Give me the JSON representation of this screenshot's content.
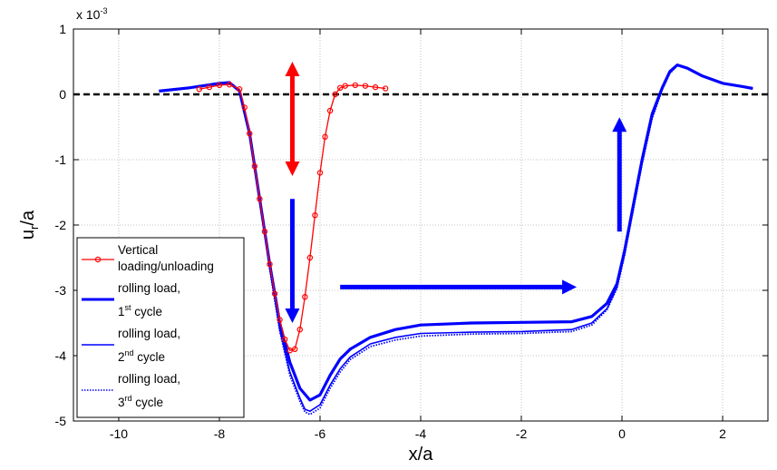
{
  "chart_data": {
    "type": "line",
    "xlabel": "x/a",
    "ylabel_main": "u",
    "ylabel_sub": "r",
    "ylabel_suffix": "/a",
    "y_exponent_prefix": "x 10",
    "y_exponent": "-3",
    "xlim": [
      -10.9,
      2.9
    ],
    "ylim": [
      -5,
      1
    ],
    "x_ticks": [
      -10,
      -8,
      -6,
      -4,
      -2,
      0,
      2
    ],
    "x_tick_labels": [
      "-10",
      "-8",
      "-6",
      "-4",
      "-2",
      "0",
      "2"
    ],
    "y_ticks": [
      1,
      0,
      -1,
      -2,
      -3,
      -4,
      -5
    ],
    "y_tick_labels": [
      "1",
      "0",
      "-1",
      "-2",
      "-3",
      "-4",
      "-5"
    ],
    "grid": true,
    "reference_line": {
      "y": 0,
      "style": "dashed",
      "color": "#000000"
    },
    "legend_position": "lower-left",
    "legend": [
      {
        "line1": "Vertical",
        "line2": "loading/unloading",
        "sup": "",
        "line2_suffix": ""
      },
      {
        "line1": "rolling load,",
        "line2": "1",
        "sup": "st",
        "line2_suffix": " cycle"
      },
      {
        "line1": "rolling load,",
        "line2": "2",
        "sup": "nd",
        "line2_suffix": " cycle"
      },
      {
        "line1": "rolling load,",
        "line2": "3",
        "sup": "rd",
        "line2_suffix": " cycle"
      }
    ],
    "series": [
      {
        "style": "red-circles",
        "color": "#ff0000",
        "points": [
          [
            -8.4,
            0.08
          ],
          [
            -8.2,
            0.11
          ],
          [
            -8.0,
            0.14
          ],
          [
            -7.8,
            0.15
          ],
          [
            -7.6,
            0.08
          ],
          [
            -7.5,
            -0.2
          ],
          [
            -7.4,
            -0.6
          ],
          [
            -7.3,
            -1.1
          ],
          [
            -7.2,
            -1.6
          ],
          [
            -7.1,
            -2.1
          ],
          [
            -7.0,
            -2.6
          ],
          [
            -6.9,
            -3.05
          ],
          [
            -6.8,
            -3.45
          ],
          [
            -6.7,
            -3.75
          ],
          [
            -6.6,
            -3.92
          ],
          [
            -6.5,
            -3.9
          ],
          [
            -6.4,
            -3.6
          ],
          [
            -6.3,
            -3.1
          ],
          [
            -6.2,
            -2.5
          ],
          [
            -6.1,
            -1.85
          ],
          [
            -6.0,
            -1.2
          ],
          [
            -5.9,
            -0.65
          ],
          [
            -5.8,
            -0.25
          ],
          [
            -5.7,
            0.0
          ],
          [
            -5.6,
            0.1
          ],
          [
            -5.5,
            0.13
          ],
          [
            -5.3,
            0.14
          ],
          [
            -5.1,
            0.13
          ],
          [
            -4.9,
            0.11
          ],
          [
            -4.7,
            0.09
          ]
        ]
      },
      {
        "style": "thick-solid",
        "color": "#0000ff",
        "points": [
          [
            -9.2,
            0.05
          ],
          [
            -8.6,
            0.1
          ],
          [
            -8.0,
            0.17
          ],
          [
            -7.8,
            0.18
          ],
          [
            -7.6,
            0.05
          ],
          [
            -7.4,
            -0.6
          ],
          [
            -7.2,
            -1.6
          ],
          [
            -7.0,
            -2.6
          ],
          [
            -6.8,
            -3.5
          ],
          [
            -6.6,
            -4.1
          ],
          [
            -6.4,
            -4.5
          ],
          [
            -6.2,
            -4.68
          ],
          [
            -6.0,
            -4.6
          ],
          [
            -5.8,
            -4.3
          ],
          [
            -5.6,
            -4.05
          ],
          [
            -5.4,
            -3.9
          ],
          [
            -5.0,
            -3.72
          ],
          [
            -4.5,
            -3.6
          ],
          [
            -4.0,
            -3.53
          ],
          [
            -3.0,
            -3.5
          ],
          [
            -2.0,
            -3.49
          ],
          [
            -1.0,
            -3.48
          ],
          [
            -0.6,
            -3.4
          ],
          [
            -0.3,
            -3.2
          ],
          [
            -0.1,
            -2.9
          ],
          [
            0.05,
            -2.4
          ],
          [
            0.2,
            -1.8
          ],
          [
            0.4,
            -1.0
          ],
          [
            0.6,
            -0.3
          ],
          [
            0.8,
            0.1
          ],
          [
            0.95,
            0.35
          ],
          [
            1.1,
            0.45
          ],
          [
            1.3,
            0.4
          ],
          [
            1.6,
            0.28
          ],
          [
            2.0,
            0.17
          ],
          [
            2.4,
            0.12
          ],
          [
            2.6,
            0.09
          ]
        ]
      },
      {
        "style": "thin-solid",
        "color": "#0000ff",
        "points": [
          [
            -9.2,
            0.05
          ],
          [
            -8.6,
            0.1
          ],
          [
            -8.0,
            0.17
          ],
          [
            -7.8,
            0.18
          ],
          [
            -7.6,
            0.05
          ],
          [
            -7.4,
            -0.6
          ],
          [
            -7.2,
            -1.6
          ],
          [
            -7.0,
            -2.65
          ],
          [
            -6.8,
            -3.6
          ],
          [
            -6.6,
            -4.25
          ],
          [
            -6.4,
            -4.65
          ],
          [
            -6.3,
            -4.82
          ],
          [
            -6.2,
            -4.85
          ],
          [
            -6.0,
            -4.75
          ],
          [
            -5.8,
            -4.45
          ],
          [
            -5.6,
            -4.2
          ],
          [
            -5.4,
            -4.02
          ],
          [
            -5.0,
            -3.82
          ],
          [
            -4.5,
            -3.72
          ],
          [
            -4.0,
            -3.66
          ],
          [
            -3.0,
            -3.64
          ],
          [
            -2.0,
            -3.63
          ],
          [
            -1.0,
            -3.6
          ],
          [
            -0.6,
            -3.5
          ],
          [
            -0.3,
            -3.28
          ],
          [
            -0.1,
            -2.95
          ],
          [
            0.05,
            -2.45
          ],
          [
            0.2,
            -1.85
          ],
          [
            0.4,
            -1.05
          ],
          [
            0.6,
            -0.35
          ],
          [
            0.8,
            0.08
          ],
          [
            0.95,
            0.33
          ],
          [
            1.1,
            0.44
          ],
          [
            1.3,
            0.4
          ],
          [
            1.6,
            0.28
          ],
          [
            2.0,
            0.17
          ],
          [
            2.4,
            0.12
          ],
          [
            2.6,
            0.09
          ]
        ]
      },
      {
        "style": "dotted",
        "color": "#0000ff",
        "points": [
          [
            -9.2,
            0.05
          ],
          [
            -8.6,
            0.1
          ],
          [
            -8.0,
            0.17
          ],
          [
            -7.8,
            0.18
          ],
          [
            -7.6,
            0.05
          ],
          [
            -7.4,
            -0.6
          ],
          [
            -7.2,
            -1.6
          ],
          [
            -7.0,
            -2.68
          ],
          [
            -6.8,
            -3.63
          ],
          [
            -6.6,
            -4.3
          ],
          [
            -6.4,
            -4.7
          ],
          [
            -6.3,
            -4.86
          ],
          [
            -6.2,
            -4.9
          ],
          [
            -6.0,
            -4.8
          ],
          [
            -5.8,
            -4.5
          ],
          [
            -5.6,
            -4.25
          ],
          [
            -5.4,
            -4.06
          ],
          [
            -5.0,
            -3.86
          ],
          [
            -4.5,
            -3.76
          ],
          [
            -4.0,
            -3.7
          ],
          [
            -3.0,
            -3.67
          ],
          [
            -2.0,
            -3.66
          ],
          [
            -1.0,
            -3.63
          ],
          [
            -0.6,
            -3.53
          ],
          [
            -0.3,
            -3.3
          ],
          [
            -0.1,
            -2.97
          ],
          [
            0.05,
            -2.47
          ],
          [
            0.2,
            -1.87
          ],
          [
            0.4,
            -1.07
          ],
          [
            0.6,
            -0.37
          ],
          [
            0.8,
            0.07
          ],
          [
            0.95,
            0.32
          ],
          [
            1.1,
            0.44
          ],
          [
            1.3,
            0.4
          ],
          [
            1.6,
            0.28
          ],
          [
            2.0,
            0.17
          ],
          [
            2.4,
            0.12
          ],
          [
            2.6,
            0.09
          ]
        ]
      }
    ],
    "arrows": [
      {
        "color": "#ff0000",
        "from": [
          -6.55,
          -1.25
        ],
        "to": [
          -6.55,
          0.5
        ],
        "double": true
      },
      {
        "color": "#0000ff",
        "from": [
          -6.55,
          -1.6
        ],
        "to": [
          -6.55,
          -3.5
        ],
        "double": false
      },
      {
        "color": "#0000ff",
        "from": [
          -5.6,
          -2.95
        ],
        "to": [
          -0.9,
          -2.95
        ],
        "double": false
      },
      {
        "color": "#0000ff",
        "from": [
          -0.05,
          -2.1
        ],
        "to": [
          -0.05,
          -0.35
        ],
        "double": false
      }
    ]
  }
}
